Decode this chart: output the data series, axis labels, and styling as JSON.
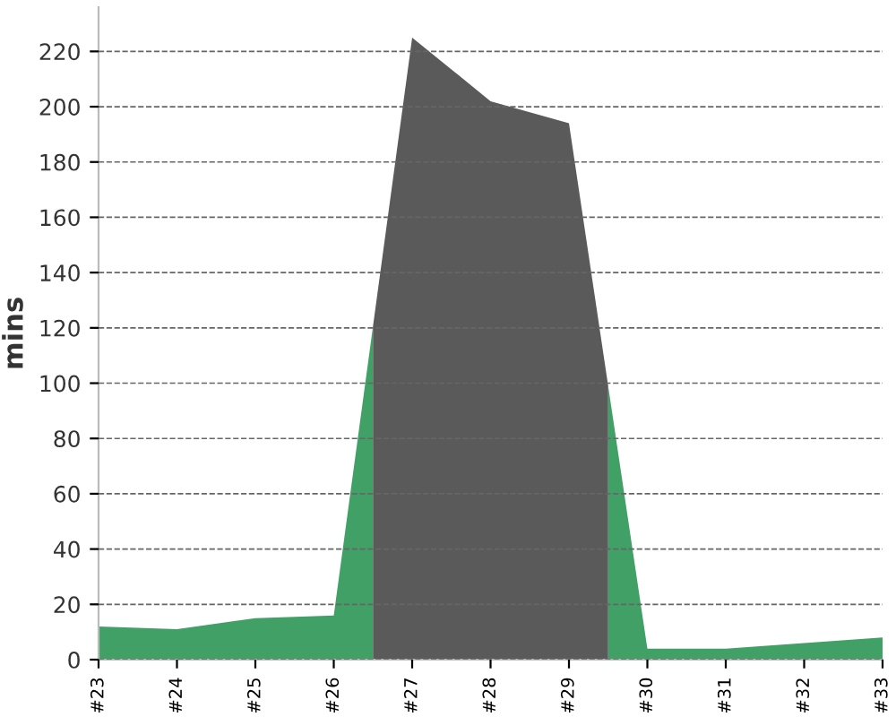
{
  "chart_data": {
    "type": "area",
    "ylabel": "mins",
    "series": [
      {
        "color": "#41a066",
        "x": [
          23,
          24,
          25,
          26,
          26.5,
          27,
          28,
          29,
          29.5,
          30,
          31,
          32,
          33
        ],
        "values": [
          12,
          11,
          15,
          16,
          120.5,
          null,
          null,
          null,
          99,
          4,
          4,
          6,
          8
        ]
      },
      {
        "color": "#5a5a5a",
        "x": [
          26.5,
          27,
          28,
          29,
          29.5
        ],
        "values": [
          120.5,
          225,
          202,
          194,
          99
        ]
      }
    ],
    "xlim": [
      23,
      33
    ],
    "xticks": [
      {
        "value": 23,
        "label": "#23"
      },
      {
        "value": 24,
        "label": "#24"
      },
      {
        "value": 25,
        "label": "#25"
      },
      {
        "value": 26,
        "label": "#26"
      },
      {
        "value": 27,
        "label": "#27"
      },
      {
        "value": 28,
        "label": "#28"
      },
      {
        "value": 29,
        "label": "#29"
      },
      {
        "value": 30,
        "label": "#30"
      },
      {
        "value": 31,
        "label": "#31"
      },
      {
        "value": 32,
        "label": "#32"
      },
      {
        "value": 33,
        "label": "#33"
      }
    ],
    "ylim": [
      0,
      236
    ],
    "yticks": [
      0,
      20,
      40,
      60,
      80,
      100,
      120,
      140,
      160,
      180,
      200,
      220
    ],
    "grid": "y",
    "line_style": "dashed"
  }
}
